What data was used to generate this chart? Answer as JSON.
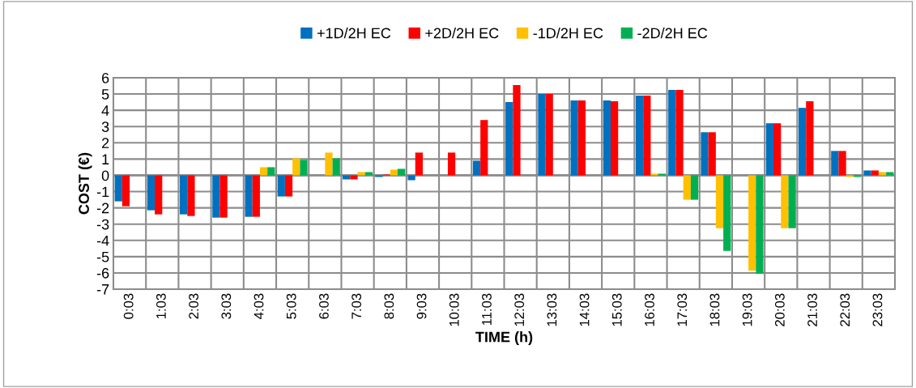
{
  "chart_data": {
    "type": "bar",
    "xlabel": "TIME (h)",
    "ylabel": "COST (€)",
    "categories": [
      "0:03",
      "1:03",
      "2:03",
      "3:03",
      "4:03",
      "5:03",
      "6:03",
      "7:03",
      "8:03",
      "9:03",
      "10:03",
      "11:03",
      "12:03",
      "13:03",
      "14:03",
      "15:03",
      "16:03",
      "17:03",
      "18:03",
      "19:03",
      "20:03",
      "21:03",
      "22:03",
      "23:03"
    ],
    "series": [
      {
        "name": "+1D/2H EC",
        "color": "#0070c0",
        "values": [
          -1.6,
          -2.15,
          -2.4,
          -2.6,
          -2.55,
          -1.3,
          0,
          -0.25,
          -0.1,
          -0.3,
          0,
          0.9,
          4.5,
          5,
          4.6,
          4.6,
          4.9,
          5.25,
          2.65,
          0,
          3.2,
          4.15,
          1.5,
          0.3
        ]
      },
      {
        "name": "+2D/2H EC",
        "color": "#ff0000",
        "values": [
          -1.9,
          -2.4,
          -2.5,
          -2.6,
          -2.55,
          -1.3,
          0,
          -0.25,
          0.05,
          1.4,
          1.4,
          3.4,
          5.55,
          5,
          4.6,
          4.55,
          4.9,
          5.25,
          2.65,
          0,
          3.2,
          4.55,
          1.5,
          0.3
        ]
      },
      {
        "name": "-1D/2H EC",
        "color": "#ffc000",
        "values": [
          0,
          0,
          0,
          0,
          0.5,
          1.05,
          1.4,
          0.2,
          0.35,
          0,
          0,
          0,
          0,
          0,
          0,
          0,
          0.1,
          -1.5,
          -3.25,
          -5.85,
          -3.25,
          0,
          -0.1,
          0.2
        ]
      },
      {
        "name": "-2D/2H EC",
        "color": "#00b050",
        "values": [
          0,
          0,
          0,
          0,
          0.5,
          0.95,
          1.05,
          0.2,
          0.4,
          0,
          0,
          0,
          0,
          0,
          0,
          0,
          0.1,
          -1.5,
          -4.65,
          -6.05,
          -3.25,
          0,
          -0.1,
          0.2
        ]
      }
    ],
    "ylim": [
      -7,
      6
    ],
    "yticks": [
      -7,
      -6,
      -5,
      -4,
      -3,
      -2,
      -1,
      0,
      1,
      2,
      3,
      4,
      5,
      6
    ],
    "grid": true,
    "legend": "top"
  }
}
